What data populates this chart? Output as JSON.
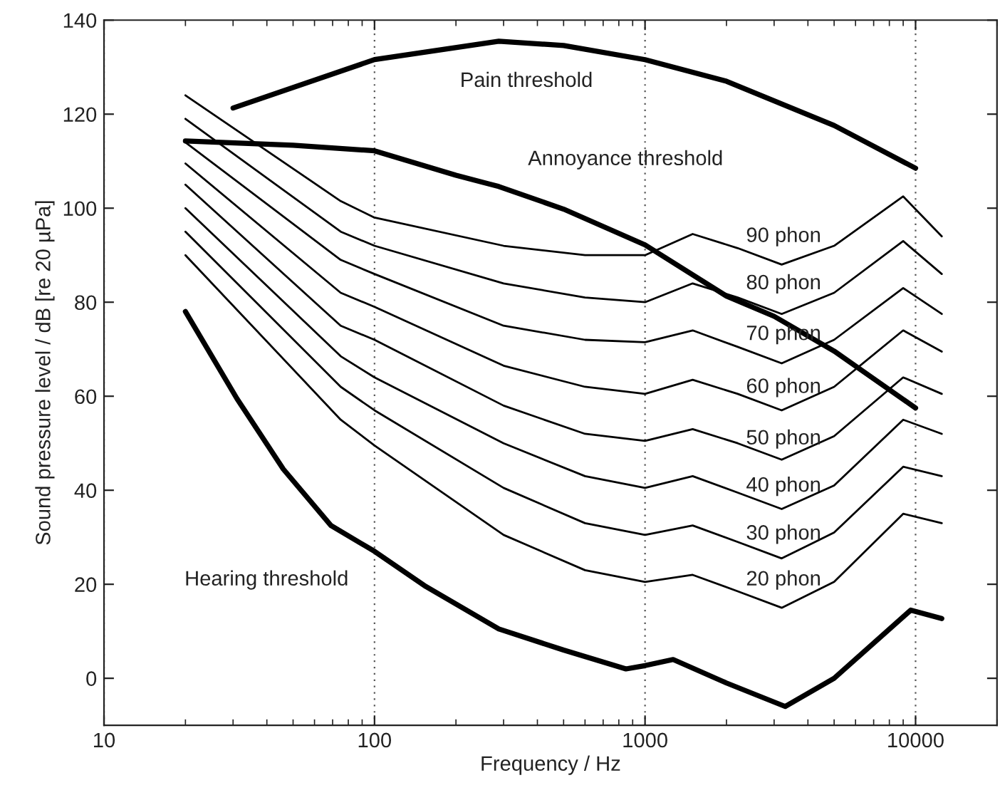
{
  "chart_data": {
    "type": "line",
    "xlabel": "Frequency / Hz",
    "ylabel": "Sound pressure level / dB [re 20 µPa]",
    "log": "x",
    "xlim": [
      10,
      20000
    ],
    "xticks": [
      10,
      100,
      1000,
      10000
    ],
    "ylim": [
      -10,
      140
    ],
    "yticks": [
      0,
      20,
      40,
      60,
      80,
      100,
      120,
      140
    ],
    "grid": "x",
    "marker": "none",
    "line_style": "solid",
    "series": [
      {
        "color": "#000000",
        "x": [
          30,
          100,
          288,
          500,
          1000,
          2000,
          5000,
          10000
        ],
        "values": [
          121.3,
          131.6,
          135.5,
          134.6,
          131.6,
          127,
          117.6,
          108.5
        ]
      },
      {
        "color": "#000000",
        "x": [
          20,
          50,
          100,
          200,
          288,
          500,
          1000,
          2000,
          3000,
          5000,
          10000
        ],
        "values": [
          114.3,
          113.4,
          112.2,
          107,
          104.6,
          99.8,
          92.2,
          81.3,
          77,
          69.6,
          57.5
        ]
      },
      {
        "color": "#000000",
        "x": [
          20,
          31,
          46,
          69,
          100,
          155,
          288,
          500,
          850,
          1000,
          1270,
          2000,
          3300,
          5000,
          9600,
          12500
        ],
        "values": [
          78,
          59.5,
          44.5,
          32.5,
          27,
          19.5,
          10.5,
          6,
          2,
          2.7,
          4,
          -1,
          -6,
          0,
          14.5,
          12.7
        ]
      },
      {
        "color": "#000000",
        "x": [
          20,
          75,
          100,
          300,
          600,
          1000,
          1500,
          2200,
          3200,
          5000,
          9000,
          12500
        ],
        "values": [
          124,
          101.5,
          98,
          92,
          90,
          90,
          94.5,
          91.5,
          88,
          92,
          102.5,
          94
        ]
      },
      {
        "color": "#000000",
        "x": [
          20,
          75,
          100,
          300,
          600,
          1000,
          1500,
          2200,
          3200,
          5000,
          9000,
          12500
        ],
        "values": [
          119,
          95,
          92,
          84,
          81,
          80,
          84,
          81,
          77.5,
          82,
          93,
          86
        ]
      },
      {
        "color": "#000000",
        "x": [
          20,
          75,
          100,
          300,
          600,
          1000,
          1500,
          2200,
          3200,
          5000,
          9000,
          12500
        ],
        "values": [
          114,
          89,
          86,
          75,
          72,
          71.5,
          74,
          70.5,
          67,
          72,
          83,
          77.5
        ]
      },
      {
        "color": "#000000",
        "x": [
          20,
          75,
          100,
          300,
          600,
          1000,
          1500,
          2200,
          3200,
          5000,
          9000,
          12500
        ],
        "values": [
          109.5,
          82,
          79,
          66.5,
          62,
          60.5,
          63.5,
          60.5,
          57,
          62,
          74,
          69.5
        ]
      },
      {
        "color": "#000000",
        "x": [
          20,
          75,
          100,
          300,
          600,
          1000,
          1500,
          2200,
          3200,
          5000,
          9000,
          12500
        ],
        "values": [
          105,
          75,
          72,
          58,
          52,
          50.5,
          53,
          50,
          46.5,
          51.5,
          64,
          60.5
        ]
      },
      {
        "color": "#000000",
        "x": [
          20,
          75,
          100,
          300,
          600,
          1000,
          1500,
          2200,
          3200,
          5000,
          9000,
          12500
        ],
        "values": [
          100,
          68.5,
          64,
          50,
          43,
          40.5,
          43,
          39.5,
          36,
          41,
          55,
          52
        ]
      },
      {
        "color": "#000000",
        "x": [
          20,
          75,
          100,
          300,
          600,
          1000,
          1500,
          2200,
          3200,
          5000,
          9000,
          12500
        ],
        "values": [
          95,
          62,
          57,
          40.5,
          33,
          30.5,
          32.5,
          29,
          25.5,
          31,
          45,
          43
        ]
      },
      {
        "color": "#000000",
        "x": [
          20,
          75,
          100,
          300,
          600,
          1000,
          1500,
          2200,
          3200,
          5000,
          9000,
          12500
        ],
        "values": [
          90,
          55,
          49.5,
          30.5,
          23,
          20.5,
          22,
          18.5,
          15,
          20.5,
          35,
          33
        ]
      }
    ],
    "annotations": [
      "Pain threshold",
      "Annoyance threshold",
      "Hearing threshold",
      "90 phon",
      "80 phon",
      "70 phon",
      "60 phon",
      "50 phon",
      "40 phon",
      "30 phon",
      "20 phon"
    ]
  }
}
